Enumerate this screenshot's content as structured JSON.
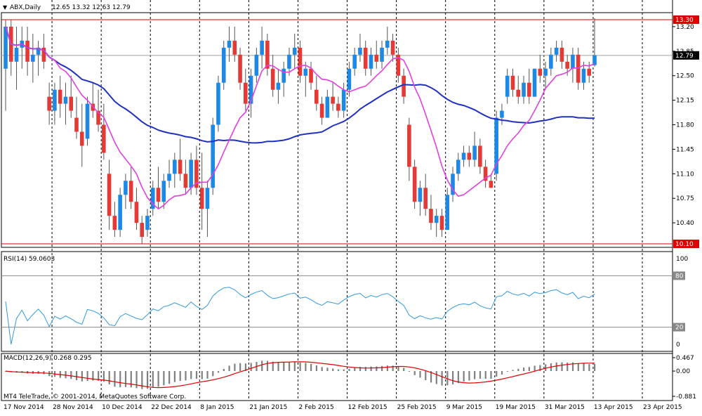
{
  "header": {
    "symbol": "ABX,Daily",
    "ohlc": "12.65 13.32 12.63 12.79"
  },
  "footer": {
    "copyright": "MT4 TeleTrade, © 2001-2014, MetaQuotes Software Corp."
  },
  "colors": {
    "bull": "#1e88e5",
    "bear": "#e53935",
    "ma_fast": "#e040e0",
    "ma_slow": "#2030c0",
    "rsi": "#3399dd",
    "macd_hist": "#808080",
    "macd_signal": "#dd0000",
    "hline": "#dd0000",
    "current": "#000000"
  },
  "chart_data": [
    {
      "type": "candlestick",
      "panel": "price",
      "x_labels": [
        "17 Nov 2014",
        "28 Nov 2014",
        "10 Dec 2014",
        "22 Dec 2014",
        "8 Jan 2015",
        "21 Jan 2015",
        "2 Feb 2015",
        "12 Feb 2015",
        "25 Feb 2015",
        "9 Mar 2015",
        "19 Mar 2015",
        "31 Mar 2015",
        "13 Apr 2015",
        "23 Apr 2015"
      ],
      "y_ticks": [
        "13.20",
        "12.85",
        "12.50",
        "12.15",
        "11.80",
        "11.45",
        "11.10",
        "10.75",
        "10.40"
      ],
      "ylim": [
        10.05,
        13.4
      ],
      "hlines": [
        {
          "value": 13.3,
          "label": "13.30"
        },
        {
          "value": 10.1,
          "label": "10.10"
        }
      ],
      "current": {
        "value": 12.79,
        "label": "12.79"
      },
      "candles": [
        [
          12.6,
          13.3,
          12.0,
          13.2
        ],
        [
          13.2,
          13.3,
          12.5,
          12.7
        ],
        [
          12.7,
          13.2,
          12.3,
          12.9
        ],
        [
          12.9,
          13.2,
          12.6,
          13.0
        ],
        [
          13.0,
          13.2,
          12.5,
          12.7
        ],
        [
          12.7,
          13.1,
          12.4,
          12.8
        ],
        [
          12.8,
          13.0,
          12.5,
          12.9
        ],
        [
          12.9,
          13.1,
          12.6,
          12.7
        ],
        [
          12.2,
          12.4,
          11.8,
          12.0
        ],
        [
          12.0,
          12.4,
          11.8,
          12.3
        ],
        [
          12.3,
          12.5,
          11.9,
          12.1
        ],
        [
          12.1,
          12.4,
          11.8,
          12.2
        ],
        [
          12.2,
          12.5,
          11.9,
          12.0
        ],
        [
          11.9,
          12.2,
          11.6,
          11.7
        ],
        [
          11.7,
          12.1,
          11.2,
          11.5
        ],
        [
          11.6,
          12.2,
          11.5,
          12.1
        ],
        [
          12.1,
          12.4,
          11.9,
          12.0
        ],
        [
          12.0,
          12.3,
          11.7,
          11.8
        ],
        [
          11.8,
          12.1,
          11.3,
          11.4
        ],
        [
          11.1,
          11.3,
          10.3,
          10.5
        ],
        [
          10.5,
          10.7,
          10.2,
          10.3
        ],
        [
          10.3,
          10.9,
          10.2,
          10.8
        ],
        [
          10.8,
          11.1,
          10.6,
          11.0
        ],
        [
          11.0,
          11.2,
          10.6,
          10.7
        ],
        [
          10.7,
          10.9,
          10.3,
          10.4
        ],
        [
          10.4,
          10.5,
          10.1,
          10.2
        ],
        [
          10.3,
          10.6,
          10.2,
          10.5
        ],
        [
          10.6,
          11.0,
          10.5,
          10.9
        ],
        [
          10.9,
          11.2,
          10.6,
          10.7
        ],
        [
          10.7,
          11.1,
          10.6,
          11.0
        ],
        [
          11.0,
          11.3,
          10.9,
          11.1
        ],
        [
          11.1,
          11.4,
          10.9,
          11.3
        ],
        [
          11.3,
          11.6,
          11.0,
          11.1
        ],
        [
          11.1,
          11.3,
          10.8,
          10.9
        ],
        [
          10.9,
          11.4,
          10.8,
          11.3
        ],
        [
          11.3,
          11.5,
          10.8,
          10.9
        ],
        [
          10.9,
          11.4,
          10.3,
          10.6
        ],
        [
          10.6,
          11.0,
          10.2,
          10.9
        ],
        [
          10.9,
          11.9,
          10.8,
          11.8
        ],
        [
          11.8,
          12.5,
          11.7,
          12.4
        ],
        [
          12.4,
          13.0,
          12.3,
          12.9
        ],
        [
          12.9,
          13.2,
          12.7,
          13.0
        ],
        [
          13.0,
          13.2,
          12.7,
          12.8
        ],
        [
          12.8,
          12.9,
          12.3,
          12.4
        ],
        [
          12.4,
          12.6,
          12.0,
          12.1
        ],
        [
          12.1,
          12.6,
          11.9,
          12.5
        ],
        [
          12.5,
          12.9,
          12.4,
          12.8
        ],
        [
          12.8,
          13.2,
          12.6,
          13.0
        ],
        [
          13.0,
          13.1,
          12.5,
          12.6
        ],
        [
          12.6,
          12.8,
          12.2,
          12.3
        ],
        [
          12.3,
          12.6,
          12.1,
          12.4
        ],
        [
          12.4,
          12.7,
          12.2,
          12.6
        ],
        [
          12.6,
          12.9,
          12.5,
          12.8
        ],
        [
          12.8,
          13.1,
          12.6,
          12.9
        ],
        [
          12.9,
          13.0,
          12.4,
          12.5
        ],
        [
          12.5,
          12.7,
          12.2,
          12.6
        ],
        [
          12.6,
          12.7,
          12.3,
          12.4
        ],
        [
          12.3,
          12.5,
          12.0,
          12.1
        ],
        [
          12.1,
          12.2,
          11.8,
          11.9
        ],
        [
          11.9,
          12.3,
          11.9,
          12.2
        ],
        [
          12.2,
          12.4,
          12.0,
          12.1
        ],
        [
          12.1,
          12.2,
          11.9,
          12.0
        ],
        [
          12.0,
          12.4,
          11.9,
          12.3
        ],
        [
          12.3,
          12.7,
          12.2,
          12.6
        ],
        [
          12.6,
          12.9,
          12.5,
          12.8
        ],
        [
          12.8,
          13.1,
          12.7,
          12.9
        ],
        [
          12.9,
          13.0,
          12.5,
          12.6
        ],
        [
          12.6,
          12.9,
          12.5,
          12.8
        ],
        [
          12.8,
          13.0,
          12.6,
          12.7
        ],
        [
          12.7,
          13.0,
          12.6,
          12.9
        ],
        [
          12.9,
          13.2,
          12.8,
          13.0
        ],
        [
          13.0,
          13.1,
          12.7,
          12.8
        ],
        [
          12.8,
          12.9,
          12.4,
          12.5
        ],
        [
          12.5,
          12.6,
          12.1,
          12.2
        ],
        [
          11.8,
          11.9,
          11.0,
          11.2
        ],
        [
          11.2,
          11.3,
          10.6,
          10.7
        ],
        [
          10.7,
          11.0,
          10.5,
          10.9
        ],
        [
          10.9,
          11.1,
          10.5,
          10.6
        ],
        [
          10.6,
          10.8,
          10.3,
          10.4
        ],
        [
          10.4,
          10.6,
          10.2,
          10.5
        ],
        [
          10.5,
          10.6,
          10.2,
          10.3
        ],
        [
          10.3,
          10.9,
          10.3,
          10.8
        ],
        [
          10.8,
          11.2,
          10.7,
          11.1
        ],
        [
          11.1,
          11.4,
          11.0,
          11.3
        ],
        [
          11.3,
          11.5,
          11.2,
          11.4
        ],
        [
          11.4,
          11.5,
          11.2,
          11.3
        ],
        [
          11.3,
          11.7,
          11.2,
          11.5
        ],
        [
          11.5,
          11.6,
          11.1,
          11.2
        ],
        [
          11.2,
          11.3,
          10.9,
          11.0
        ],
        [
          11.0,
          11.1,
          10.9,
          10.9
        ],
        [
          11.1,
          12.0,
          11.0,
          11.9
        ],
        [
          11.9,
          12.1,
          11.8,
          12.0
        ],
        [
          12.2,
          12.6,
          12.1,
          12.5
        ],
        [
          12.5,
          12.6,
          12.2,
          12.3
        ],
        [
          12.3,
          12.5,
          12.1,
          12.2
        ],
        [
          12.2,
          12.5,
          12.1,
          12.4
        ],
        [
          12.4,
          12.6,
          12.1,
          12.2
        ],
        [
          12.2,
          12.6,
          12.2,
          12.6
        ],
        [
          12.6,
          12.8,
          12.4,
          12.5
        ],
        [
          12.5,
          12.7,
          12.3,
          12.6
        ],
        [
          12.6,
          12.9,
          12.5,
          12.8
        ],
        [
          12.8,
          13.0,
          12.7,
          12.9
        ],
        [
          12.9,
          13.0,
          12.6,
          12.7
        ],
        [
          12.7,
          12.8,
          12.5,
          12.6
        ],
        [
          12.6,
          12.9,
          12.4,
          12.8
        ],
        [
          12.8,
          12.9,
          12.3,
          12.4
        ],
        [
          12.4,
          12.7,
          12.3,
          12.6
        ],
        [
          12.6,
          12.7,
          12.4,
          12.5
        ],
        [
          12.65,
          13.32,
          12.63,
          12.79
        ]
      ],
      "ma_fast_label": "",
      "ma_slow_label": ""
    },
    {
      "type": "line",
      "panel": "rsi",
      "title": "RSI(14) 59.0603",
      "y_ticks": [
        "100",
        "80",
        "20",
        "0"
      ],
      "ylim": [
        0,
        100
      ],
      "levels": [
        80,
        20
      ]
    },
    {
      "type": "bar",
      "panel": "macd",
      "title": "MACD(12,26,9) 0.268 0.295",
      "y_ticks": [
        "0.467",
        "0.00",
        "-0.881"
      ],
      "ylim": [
        -0.881,
        0.467
      ]
    }
  ]
}
